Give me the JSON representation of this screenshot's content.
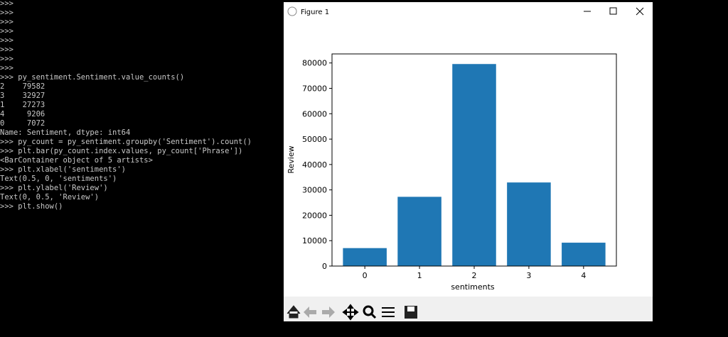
{
  "terminal": {
    "lines": [
      ">>>",
      ">>>",
      ">>>",
      ">>>",
      ">>>",
      ">>>",
      ">>>",
      ">>>",
      ">>> py_sentiment.Sentiment.value_counts()",
      "2    79582",
      "3    32927",
      "1    27273",
      "4     9206",
      "0     7072",
      "Name: Sentiment, dtype: int64",
      ">>> py_count = py_sentiment.groupby('Sentiment').count()",
      ">>> plt.bar(py_count.index.values, py_count['Phrase'])",
      "<BarContainer object of 5 artists>",
      ">>> plt.xlabel('sentiments')",
      "Text(0.5, 0, 'sentiments')",
      ">>> plt.ylabel('Review')",
      "Text(0, 0.5, 'Review')",
      ">>> plt.show()"
    ]
  },
  "window": {
    "title": "Figure 1"
  },
  "chart_data": {
    "type": "bar",
    "xlabel": "sentiments",
    "ylabel": "Review",
    "categories": [
      "0",
      "1",
      "2",
      "3",
      "4"
    ],
    "values": [
      7072,
      27273,
      79582,
      32927,
      9206
    ],
    "color": "#1f77b4",
    "ylim": [
      0,
      83561
    ],
    "yticks": [
      0,
      10000,
      20000,
      30000,
      40000,
      50000,
      60000,
      70000,
      80000
    ],
    "grid": false
  }
}
